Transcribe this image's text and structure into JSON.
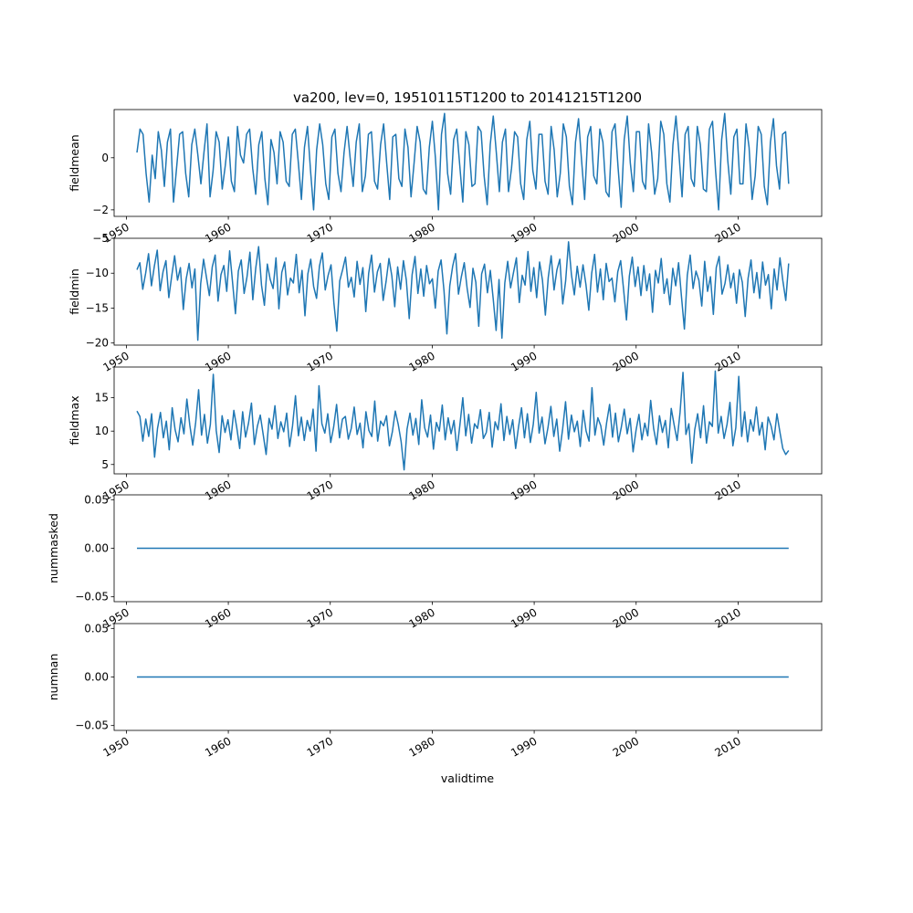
{
  "figure": {
    "title": "va200, lev=0, 19510115T1200 to 20141215T1200",
    "xlabel": "validtime",
    "line_color": "#1f77b4"
  },
  "chart_data": [
    {
      "type": "line",
      "ylabel": "fieldmean",
      "xlim": [
        1948.8,
        2018.2
      ],
      "ylim": [
        -2.25,
        1.85
      ],
      "yticks": [
        -2,
        0
      ],
      "ytick_labels": [
        "−2",
        "0"
      ],
      "xticks": [
        1950,
        1960,
        1970,
        1980,
        1990,
        2000,
        2010
      ],
      "xtick_labels": [
        "1950",
        "1960",
        "1970",
        "1980",
        "1990",
        "2000",
        "2010"
      ],
      "x_range": [
        1951.04,
        2014.96
      ],
      "series": [
        {
          "values": [
            0.2,
            1.1,
            0.9,
            -0.6,
            -1.7,
            0.1,
            -0.8,
            1.0,
            0.3,
            -1.1,
            0.6,
            1.1,
            -1.7,
            -0.4,
            0.9,
            1.0,
            -0.6,
            -1.5,
            0.5,
            1.1,
            0.1,
            -1.0,
            0.2,
            1.3,
            -1.5,
            -0.5,
            1.0,
            0.6,
            -1.2,
            -0.3,
            0.8,
            -0.9,
            -1.3,
            1.2,
            0.1,
            -0.2,
            0.9,
            1.1,
            -0.4,
            -1.4,
            0.5,
            1.0,
            -0.8,
            -1.8,
            0.7,
            0.2,
            -1.0,
            1.0,
            0.6,
            -0.9,
            -1.1,
            0.9,
            1.1,
            -0.2,
            -1.6,
            0.4,
            1.2,
            -0.5,
            -2.0,
            0.3,
            1.3,
            0.5,
            -1.0,
            -1.6,
            0.8,
            1.1,
            -0.6,
            -1.3,
            0.2,
            1.2,
            0.0,
            -1.1,
            0.6,
            1.3,
            -1.3,
            -0.7,
            0.9,
            1.0,
            -0.9,
            -1.2,
            0.5,
            1.3,
            -0.2,
            -1.6,
            0.8,
            0.9,
            -0.8,
            -1.1,
            1.1,
            0.4,
            -1.5,
            -0.2,
            1.2,
            0.6,
            -1.2,
            -1.4,
            0.4,
            1.4,
            0.0,
            -2.0,
            0.9,
            1.7,
            -0.6,
            -1.4,
            0.7,
            1.1,
            -0.3,
            -1.7,
            1.0,
            0.5,
            -1.1,
            -1.0,
            1.2,
            1.0,
            -0.7,
            -1.8,
            0.5,
            1.6,
            0.2,
            -1.3,
            0.6,
            1.1,
            -1.3,
            -0.4,
            1.0,
            0.8,
            -1.0,
            -1.6,
            0.7,
            1.4,
            -0.5,
            -1.2,
            0.9,
            0.9,
            -0.9,
            -1.4,
            1.2,
            0.3,
            -1.5,
            -0.6,
            1.3,
            0.8,
            -1.1,
            -1.8,
            0.6,
            1.5,
            -0.1,
            -1.6,
            0.8,
            1.2,
            -0.7,
            -1.0,
            1.1,
            0.6,
            -1.3,
            -1.5,
            1.0,
            1.3,
            -0.4,
            -1.9,
            0.7,
            1.6,
            -0.2,
            -1.3,
            1.0,
            1.0,
            -0.9,
            -1.2,
            1.3,
            0.2,
            -1.4,
            -0.8,
            1.4,
            0.9,
            -1.0,
            -1.7,
            0.5,
            1.6,
            0.1,
            -1.5,
            0.9,
            1.2,
            -0.8,
            -1.1,
            1.2,
            0.5,
            -1.2,
            -1.3,
            1.1,
            1.4,
            -0.5,
            -2.0,
            0.7,
            1.7,
            -0.1,
            -1.4,
            0.8,
            1.1,
            -1.0,
            -1.0,
            1.3,
            0.4,
            -1.6,
            -0.7,
            1.2,
            0.9,
            -1.1,
            -1.8,
            0.6,
            1.5,
            -0.3,
            -1.2,
            0.9,
            1.0,
            -1.0
          ]
        }
      ]
    },
    {
      "type": "line",
      "ylabel": "fieldmin",
      "xlim": [
        1948.8,
        2018.2
      ],
      "ylim": [
        -20.3,
        -5.0
      ],
      "yticks": [
        -20,
        -15,
        -10,
        -5
      ],
      "ytick_labels": [
        "−20",
        "−15",
        "−10",
        "−5"
      ],
      "xticks": [
        1950,
        1960,
        1970,
        1980,
        1990,
        2000,
        2010
      ],
      "xtick_labels": [
        "1950",
        "1960",
        "1970",
        "1980",
        "1990",
        "2000",
        "2010"
      ],
      "x_range": [
        1951.04,
        2014.96
      ],
      "series": [
        {
          "values": [
            -9.5,
            -8.5,
            -12.3,
            -10.0,
            -7.2,
            -11.8,
            -9.0,
            -6.7,
            -12.5,
            -9.8,
            -8.2,
            -13.5,
            -10.4,
            -7.5,
            -11.0,
            -9.2,
            -15.2,
            -10.8,
            -8.6,
            -12.1,
            -9.4,
            -19.6,
            -11.5,
            -8.0,
            -10.6,
            -13.2,
            -9.1,
            -7.4,
            -14.0,
            -10.2,
            -8.9,
            -12.6,
            -6.8,
            -11.3,
            -15.8,
            -9.7,
            -8.1,
            -12.9,
            -10.5,
            -7.0,
            -13.8,
            -9.3,
            -6.2,
            -11.7,
            -14.6,
            -8.7,
            -10.9,
            -12.2,
            -7.8,
            -15.1,
            -9.9,
            -8.4,
            -13.1,
            -10.7,
            -11.4,
            -7.3,
            -12.8,
            -9.6,
            -16.1,
            -10.1,
            -8.0,
            -11.9,
            -13.6,
            -9.0,
            -7.1,
            -12.4,
            -10.3,
            -8.8,
            -14.3,
            -18.3,
            -11.1,
            -9.5,
            -7.7,
            -12.0,
            -10.6,
            -13.4,
            -8.3,
            -11.6,
            -9.2,
            -15.5,
            -10.0,
            -7.4,
            -12.7,
            -9.8,
            -8.6,
            -13.9,
            -11.2,
            -7.9,
            -10.4,
            -14.8,
            -9.1,
            -12.3,
            -8.2,
            -11.0,
            -16.5,
            -10.2,
            -7.6,
            -12.9,
            -9.4,
            -13.3,
            -8.9,
            -11.5,
            -10.8,
            -15.0,
            -9.7,
            -8.1,
            -12.5,
            -18.7,
            -11.8,
            -9.0,
            -7.2,
            -13.0,
            -10.5,
            -8.5,
            -12.2,
            -14.9,
            -9.3,
            -11.3,
            -17.6,
            -10.1,
            -8.7,
            -12.8,
            -9.6,
            -13.7,
            -18.2,
            -10.9,
            -19.3,
            -11.4,
            -8.3,
            -12.1,
            -9.9,
            -7.8,
            -14.2,
            -10.3,
            -11.7,
            -6.9,
            -12.6,
            -9.2,
            -13.5,
            -8.4,
            -11.0,
            -16.0,
            -10.6,
            -7.5,
            -12.4,
            -9.5,
            -8.0,
            -14.4,
            -11.1,
            -5.5,
            -10.2,
            -13.1,
            -9.0,
            -12.0,
            -8.8,
            -11.6,
            -15.3,
            -10.0,
            -7.3,
            -12.7,
            -9.4,
            -13.8,
            -8.6,
            -11.2,
            -10.7,
            -14.1,
            -9.8,
            -8.2,
            -12.3,
            -16.7,
            -10.4,
            -7.7,
            -11.9,
            -9.1,
            -13.2,
            -8.9,
            -12.5,
            -10.1,
            -15.6,
            -9.6,
            -11.4,
            -7.9,
            -12.9,
            -10.8,
            -14.5,
            -9.3,
            -11.8,
            -8.5,
            -13.4,
            -18.0,
            -10.3,
            -7.4,
            -12.2,
            -9.7,
            -11.0,
            -14.7,
            -8.3,
            -12.6,
            -10.5,
            -15.9,
            -9.2,
            -7.6,
            -13.0,
            -11.5,
            -8.8,
            -12.1,
            -10.0,
            -14.3,
            -9.5,
            -11.3,
            -16.2,
            -10.7,
            -8.1,
            -12.8,
            -9.9,
            -13.6,
            -8.4,
            -11.7,
            -10.2,
            -15.1,
            -9.4,
            -12.4,
            -7.8,
            -11.1,
            -13.9,
            -8.6
          ]
        }
      ]
    },
    {
      "type": "line",
      "ylabel": "fieldmax",
      "xlim": [
        1948.8,
        2018.2
      ],
      "ylim": [
        3.6,
        19.6
      ],
      "yticks": [
        5,
        10,
        15
      ],
      "ytick_labels": [
        "5",
        "10",
        "15"
      ],
      "xticks": [
        1950,
        1960,
        1970,
        1980,
        1990,
        2000,
        2010
      ],
      "xtick_labels": [
        "1950",
        "1960",
        "1970",
        "1980",
        "1990",
        "2000",
        "2010"
      ],
      "x_range": [
        1951.04,
        2014.96
      ],
      "series": [
        {
          "values": [
            13.0,
            12.2,
            8.5,
            11.8,
            9.2,
            12.6,
            6.1,
            10.4,
            12.8,
            9.0,
            11.5,
            7.2,
            13.5,
            10.2,
            8.4,
            12.0,
            9.6,
            14.8,
            10.9,
            7.9,
            11.3,
            16.2,
            9.4,
            12.5,
            8.2,
            11.0,
            18.5,
            10.1,
            6.8,
            12.3,
            9.8,
            11.7,
            8.7,
            13.1,
            10.5,
            7.4,
            12.9,
            9.1,
            11.2,
            14.2,
            8.0,
            10.7,
            12.4,
            9.5,
            6.5,
            11.9,
            10.3,
            13.8,
            8.9,
            11.4,
            9.9,
            12.7,
            7.7,
            10.8,
            15.3,
            9.3,
            12.1,
            8.6,
            11.6,
            10.0,
            13.3,
            7.0,
            16.8,
            11.1,
            9.7,
            12.6,
            8.3,
            10.6,
            14.0,
            9.0,
            11.8,
            12.2,
            8.8,
            10.4,
            13.6,
            9.5,
            11.2,
            7.5,
            12.9,
            10.1,
            9.2,
            14.5,
            8.5,
            11.5,
            10.8,
            12.3,
            7.8,
            9.9,
            13.0,
            11.0,
            8.4,
            4.2,
            10.3,
            12.7,
            9.4,
            11.9,
            8.0,
            14.7,
            10.5,
            9.1,
            12.4,
            7.3,
            11.3,
            10.0,
            13.9,
            8.7,
            12.0,
            9.6,
            11.6,
            7.1,
            10.9,
            15.0,
            9.3,
            12.5,
            8.2,
            11.1,
            10.4,
            13.2,
            8.9,
            9.8,
            12.8,
            7.6,
            11.4,
            10.2,
            14.1,
            8.6,
            12.2,
            9.5,
            11.7,
            7.4,
            10.7,
            13.5,
            9.0,
            12.6,
            8.3,
            11.0,
            15.8,
            9.7,
            12.1,
            8.1,
            10.5,
            13.7,
            9.2,
            11.8,
            7.0,
            10.3,
            14.4,
            8.8,
            12.4,
            9.9,
            11.5,
            7.7,
            13.1,
            10.0,
            8.5,
            16.5,
            9.4,
            12.0,
            10.8,
            7.9,
            11.3,
            14.0,
            9.1,
            12.7,
            8.4,
            10.6,
            13.3,
            9.6,
            11.9,
            6.9,
            10.1,
            12.5,
            8.7,
            11.2,
            9.3,
            14.6,
            10.4,
            8.0,
            12.3,
            9.8,
            11.6,
            7.5,
            13.4,
            10.9,
            8.6,
            12.8,
            18.8,
            9.5,
            11.1,
            5.2,
            10.2,
            12.6,
            9.0,
            13.8,
            8.2,
            11.4,
            10.7,
            19.0,
            9.7,
            12.2,
            8.9,
            11.0,
            14.3,
            7.8,
            10.5,
            18.2,
            9.2,
            12.9,
            8.4,
            11.7,
            10.0,
            13.6,
            9.4,
            11.3,
            7.2,
            12.1,
            10.8,
            8.7,
            12.6,
            9.9,
            7.4,
            6.5,
            7.1
          ]
        }
      ]
    },
    {
      "type": "line",
      "ylabel": "nummasked",
      "xlim": [
        1948.8,
        2018.2
      ],
      "ylim": [
        -0.055,
        0.055
      ],
      "yticks": [
        -0.05,
        0.0,
        0.05
      ],
      "ytick_labels": [
        "−0.05",
        "0.00",
        "0.05"
      ],
      "xticks": [
        1950,
        1960,
        1970,
        1980,
        1990,
        2000,
        2010
      ],
      "xtick_labels": [
        "1950",
        "1960",
        "1970",
        "1980",
        "1990",
        "2000",
        "2010"
      ],
      "x_range": [
        1951.04,
        2014.96
      ],
      "series": [
        {
          "values": [
            0,
            0
          ]
        }
      ]
    },
    {
      "type": "line",
      "ylabel": "numnan",
      "xlim": [
        1948.8,
        2018.2
      ],
      "ylim": [
        -0.055,
        0.055
      ],
      "yticks": [
        -0.05,
        0.0,
        0.05
      ],
      "ytick_labels": [
        "−0.05",
        "0.00",
        "0.05"
      ],
      "xticks": [
        1950,
        1960,
        1970,
        1980,
        1990,
        2000,
        2010
      ],
      "xtick_labels": [
        "1950",
        "1960",
        "1970",
        "1980",
        "1990",
        "2000",
        "2010"
      ],
      "x_range": [
        1951.04,
        2014.96
      ],
      "series": [
        {
          "values": [
            0,
            0
          ]
        }
      ]
    }
  ]
}
